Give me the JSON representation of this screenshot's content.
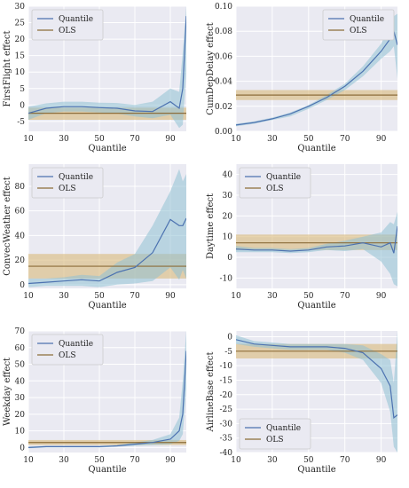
{
  "colors": {
    "background": "#eaeaf2",
    "grid": "#ffffff",
    "quantile_line": "#4c72b0",
    "quantile_band": "#8fc1d4",
    "ols_line": "#8c6d3a",
    "ols_band": "#d9b97a"
  },
  "chart_data": [
    {
      "type": "line",
      "ylabel": "FirstFlight effect",
      "xlabel": "Quantile",
      "xlim": [
        10,
        99
      ],
      "ylim": [
        -8,
        30
      ],
      "xticks": [
        10,
        30,
        50,
        70,
        90
      ],
      "yticks": [
        -5,
        0,
        5,
        10,
        15,
        20,
        25,
        30
      ],
      "legend": "top-left",
      "grid": true,
      "series": [
        {
          "name": "Quantile",
          "x": [
            10,
            20,
            30,
            40,
            50,
            60,
            70,
            80,
            90,
            95,
            97,
            99
          ],
          "y": [
            -2.5,
            -1.0,
            -0.5,
            -0.5,
            -0.8,
            -1.0,
            -1.8,
            -2.0,
            1.0,
            -1.0,
            5.0,
            27.0
          ],
          "lower": [
            -4.5,
            -2.5,
            -2.0,
            -2.0,
            -2.3,
            -2.6,
            -3.5,
            -4.0,
            -3.0,
            -7.0,
            -6.0,
            10.0
          ],
          "upper": [
            -0.5,
            0.5,
            1.0,
            1.0,
            0.7,
            0.6,
            0.0,
            1.0,
            5.0,
            4.0,
            16.0,
            30.0
          ]
        },
        {
          "name": "OLS",
          "y": -2.5,
          "lower": -4.5,
          "upper": -0.8
        }
      ]
    },
    {
      "type": "line",
      "ylabel": "CumDepDelay effect",
      "xlabel": "Quantile",
      "xlim": [
        10,
        99
      ],
      "ylim": [
        0.0,
        0.1
      ],
      "xticks": [
        10,
        30,
        50,
        70,
        90
      ],
      "yticks": [
        0.0,
        0.02,
        0.04,
        0.06,
        0.08,
        0.1
      ],
      "ytick_labels": [
        "0.00",
        "0.02",
        "0.04",
        "0.06",
        "0.08",
        "0.10"
      ],
      "legend": "top-right",
      "grid": true,
      "series": [
        {
          "name": "Quantile",
          "x": [
            10,
            20,
            30,
            40,
            50,
            60,
            70,
            80,
            90,
            95,
            97,
            99
          ],
          "y": [
            0.005,
            0.007,
            0.01,
            0.014,
            0.02,
            0.027,
            0.036,
            0.048,
            0.064,
            0.074,
            0.08,
            0.069
          ],
          "lower": [
            0.004,
            0.006,
            0.009,
            0.012,
            0.018,
            0.025,
            0.033,
            0.044,
            0.058,
            0.064,
            0.068,
            0.042
          ],
          "upper": [
            0.006,
            0.008,
            0.011,
            0.015,
            0.021,
            0.029,
            0.038,
            0.052,
            0.07,
            0.084,
            0.092,
            0.094
          ]
        },
        {
          "name": "OLS",
          "y": 0.029,
          "lower": 0.025,
          "upper": 0.033
        }
      ]
    },
    {
      "type": "line",
      "ylabel": "ConvecWeather effect",
      "xlabel": "Quantile",
      "xlim": [
        10,
        99
      ],
      "ylim": [
        -3,
        98
      ],
      "xticks": [
        10,
        30,
        50,
        70,
        90
      ],
      "yticks": [
        0,
        20,
        40,
        60,
        80
      ],
      "legend": "top-left",
      "grid": true,
      "series": [
        {
          "name": "Quantile",
          "x": [
            10,
            20,
            30,
            40,
            50,
            60,
            70,
            80,
            90,
            95,
            97,
            99
          ],
          "y": [
            1,
            2,
            3,
            4,
            3,
            10,
            14,
            26,
            53,
            48,
            48,
            54
          ],
          "lower": [
            -2,
            -1,
            -1,
            -1,
            -2,
            0,
            1,
            3,
            14,
            4,
            12,
            5
          ],
          "upper": [
            5,
            5,
            6,
            8,
            7,
            18,
            25,
            48,
            76,
            94,
            84,
            90
          ]
        },
        {
          "name": "OLS",
          "y": 15,
          "lower": 5,
          "upper": 25
        }
      ]
    },
    {
      "type": "line",
      "ylabel": "Daytime effect",
      "xlabel": "Quantile",
      "xlim": [
        10,
        99
      ],
      "ylim": [
        -15,
        45
      ],
      "xticks": [
        10,
        30,
        50,
        70,
        90
      ],
      "yticks": [
        -10,
        0,
        10,
        20,
        30,
        40
      ],
      "legend": "top-left",
      "grid": true,
      "series": [
        {
          "name": "Quantile",
          "x": [
            10,
            20,
            30,
            40,
            50,
            60,
            70,
            80,
            90,
            95,
            97,
            99
          ],
          "y": [
            4,
            3.5,
            3.5,
            3,
            3.5,
            5,
            5.5,
            7,
            5,
            7,
            2,
            15
          ],
          "lower": [
            2.5,
            2.5,
            2.5,
            2,
            2.5,
            3.5,
            3,
            4,
            -2,
            -8,
            -13,
            -14
          ],
          "upper": [
            5.5,
            4.5,
            4.5,
            4,
            4.5,
            6.5,
            8,
            10,
            12,
            17,
            16,
            22
          ]
        },
        {
          "name": "OLS",
          "y": 7,
          "lower": 3.5,
          "upper": 11
        }
      ]
    },
    {
      "type": "line",
      "ylabel": "Weekday effect",
      "xlabel": "Quantile",
      "xlim": [
        10,
        99
      ],
      "ylim": [
        -3,
        70
      ],
      "xticks": [
        10,
        30,
        50,
        70,
        90
      ],
      "yticks": [
        0,
        10,
        20,
        30,
        40,
        50,
        60,
        70
      ],
      "legend": "top-left",
      "grid": true,
      "series": [
        {
          "name": "Quantile",
          "x": [
            10,
            20,
            30,
            40,
            50,
            60,
            70,
            80,
            90,
            95,
            97,
            99
          ],
          "y": [
            0,
            0.5,
            0.5,
            0.5,
            0.5,
            1,
            2,
            3,
            5,
            10,
            20,
            58
          ],
          "lower": [
            -0.5,
            0,
            0,
            0,
            0,
            0.5,
            1,
            1.5,
            2,
            4,
            8,
            35
          ],
          "upper": [
            0.5,
            1,
            1,
            1,
            1,
            1.5,
            3,
            4.5,
            8,
            18,
            40,
            70
          ]
        },
        {
          "name": "OLS",
          "y": 3,
          "lower": 1.5,
          "upper": 4.5
        }
      ]
    },
    {
      "type": "line",
      "ylabel": "AirlineBase effect",
      "xlabel": "Quantile",
      "xlim": [
        10,
        99
      ],
      "ylim": [
        -40,
        2
      ],
      "xticks": [
        10,
        30,
        50,
        70,
        90
      ],
      "yticks": [
        -40,
        -35,
        -30,
        -25,
        -20,
        -15,
        -10,
        -5,
        0
      ],
      "legend": "bottom-left",
      "grid": true,
      "series": [
        {
          "name": "Quantile",
          "x": [
            10,
            20,
            30,
            40,
            50,
            60,
            70,
            80,
            90,
            95,
            97,
            99
          ],
          "y": [
            -1,
            -2.5,
            -3,
            -3.5,
            -3.5,
            -3.5,
            -4,
            -5.5,
            -11,
            -17,
            -28,
            -27
          ],
          "lower": [
            -2.5,
            -3.5,
            -4,
            -4.5,
            -4.5,
            -4.5,
            -5.5,
            -8,
            -16,
            -26,
            -38,
            -40
          ],
          "upper": [
            0.5,
            -1.5,
            -2,
            -2.5,
            -2.5,
            -2.5,
            -2.5,
            -3,
            -6,
            -8,
            -16,
            2
          ]
        },
        {
          "name": "OLS",
          "y": -5,
          "lower": -7.5,
          "upper": -2.5
        }
      ]
    }
  ]
}
